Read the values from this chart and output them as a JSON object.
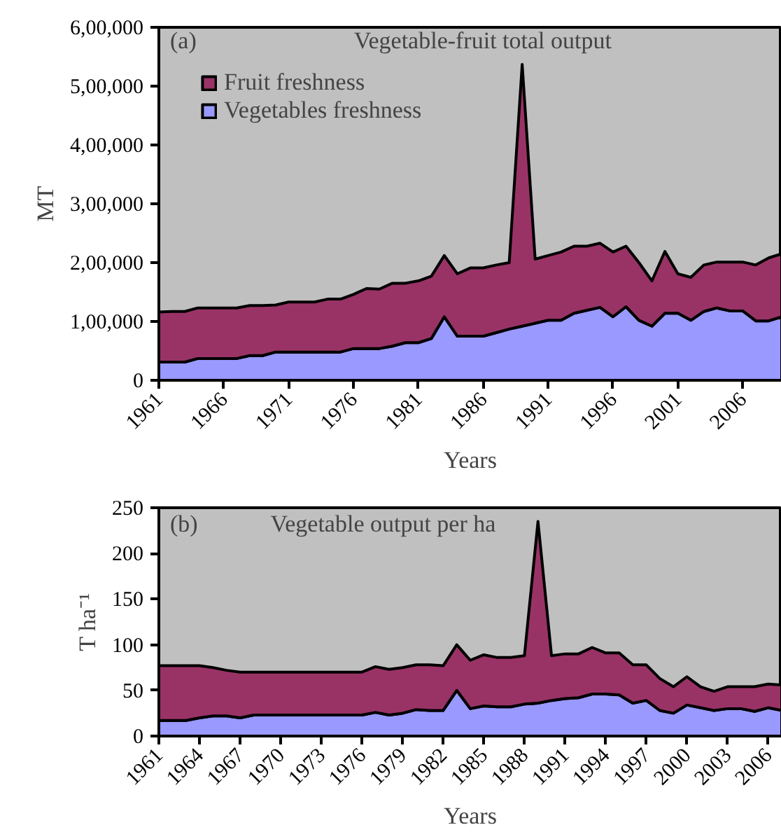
{
  "chart_data": [
    {
      "type": "area",
      "stacked": true,
      "title": "Vegetable-fruit total output",
      "xlabel": "Years",
      "ylabel": "MT",
      "annotations": [
        "(a)"
      ],
      "legend": "top left",
      "grid": false,
      "x": [
        1961,
        1962,
        1963,
        1964,
        1965,
        1966,
        1967,
        1968,
        1969,
        1970,
        1971,
        1972,
        1973,
        1974,
        1975,
        1976,
        1977,
        1978,
        1979,
        1980,
        1981,
        1982,
        1983,
        1984,
        1985,
        1986,
        1987,
        1988,
        1989,
        1990,
        1991,
        1992,
        1993,
        1994,
        1995,
        1996,
        1997,
        1998,
        1999,
        2000,
        2001,
        2002,
        2003,
        2004,
        2005,
        2006,
        2007,
        2008,
        2009
      ],
      "xlim": [
        1961,
        2009
      ],
      "xticks": [
        1961,
        1966,
        1971,
        1976,
        1981,
        1986,
        1991,
        1996,
        2001,
        2006
      ],
      "ylim": [
        0,
        600000
      ],
      "yticks": [
        0,
        {
          "value": 100000,
          "label": "1,00,000"
        },
        {
          "value": 200000,
          "label": "2,00,000"
        },
        {
          "value": 300000,
          "label": "3,00,000"
        },
        {
          "value": 400000,
          "label": "4,00,000"
        },
        {
          "value": 500000,
          "label": "5,00,000"
        },
        {
          "value": 600000,
          "label": "6,00,000"
        }
      ],
      "series": [
        {
          "name": "Vegetables freshness",
          "color": "#9999ff",
          "values": [
            31000,
            31000,
            31000,
            37000,
            37000,
            37000,
            37000,
            42000,
            42000,
            48000,
            48000,
            48000,
            48000,
            48000,
            48000,
            54000,
            54000,
            54000,
            58000,
            64000,
            64000,
            71000,
            108000,
            75000,
            75000,
            75000,
            81000,
            87000,
            92000,
            97000,
            102000,
            102000,
            114000,
            119000,
            124000,
            108000,
            125000,
            102000,
            92000,
            114000,
            114000,
            102000,
            117000,
            123000,
            118000,
            118000,
            101000,
            101000,
            108000
          ]
        },
        {
          "name": "Fruit freshness",
          "color": "#993366",
          "values": [
            85000,
            86000,
            86000,
            86000,
            86000,
            86000,
            86000,
            85000,
            85000,
            80000,
            85000,
            85000,
            85000,
            90000,
            90000,
            92000,
            102000,
            101000,
            107000,
            101000,
            105000,
            106000,
            104000,
            106000,
            116000,
            116000,
            115000,
            113000,
            445000,
            109000,
            110000,
            116000,
            114000,
            109000,
            109000,
            110000,
            103000,
            98000,
            77000,
            105000,
            67000,
            73000,
            79000,
            78000,
            83000,
            83000,
            95000,
            107000,
            107000
          ]
        }
      ]
    },
    {
      "type": "area",
      "stacked": true,
      "title": "Vegetable output per ha",
      "xlabel": "Years",
      "ylabel": "T ha⁻¹",
      "annotations": [
        "(b)"
      ],
      "grid": false,
      "x": [
        1961,
        1962,
        1963,
        1964,
        1965,
        1966,
        1967,
        1968,
        1969,
        1970,
        1971,
        1972,
        1973,
        1974,
        1975,
        1976,
        1977,
        1978,
        1979,
        1980,
        1981,
        1982,
        1983,
        1984,
        1985,
        1986,
        1987,
        1988,
        1989,
        1990,
        1991,
        1992,
        1993,
        1994,
        1995,
        1996,
        1997,
        1998,
        1999,
        2000,
        2001,
        2002,
        2003,
        2004,
        2005,
        2006,
        2007
      ],
      "xlim": [
        1961,
        2007
      ],
      "xticks": [
        1961,
        1964,
        1967,
        1970,
        1973,
        1976,
        1979,
        1982,
        1985,
        1988,
        1991,
        1994,
        1997,
        2000,
        2003,
        2006
      ],
      "ylim": [
        0,
        250
      ],
      "yticks": [
        0,
        50,
        100,
        150,
        200,
        250
      ],
      "series": [
        {
          "color": "#9999ff",
          "values": [
            17,
            17,
            17,
            20,
            22,
            22,
            20,
            23,
            23,
            23,
            23,
            23,
            23,
            23,
            23,
            23,
            26,
            23,
            25,
            29,
            28,
            28,
            50,
            30,
            33,
            32,
            32,
            35,
            36,
            39,
            41,
            42,
            46,
            46,
            45,
            36,
            39,
            28,
            25,
            34,
            31,
            28,
            30,
            30,
            27,
            31,
            28
          ]
        },
        {
          "color": "#993366",
          "values": [
            60,
            60,
            60,
            57,
            53,
            50,
            50,
            47,
            47,
            47,
            47,
            47,
            47,
            47,
            47,
            47,
            50,
            50,
            50,
            49,
            50,
            49,
            50,
            53,
            56,
            54,
            54,
            53,
            199,
            49,
            49,
            48,
            51,
            45,
            46,
            42,
            39,
            35,
            29,
            31,
            23,
            21,
            24,
            24,
            27,
            26,
            28
          ]
        }
      ]
    }
  ]
}
